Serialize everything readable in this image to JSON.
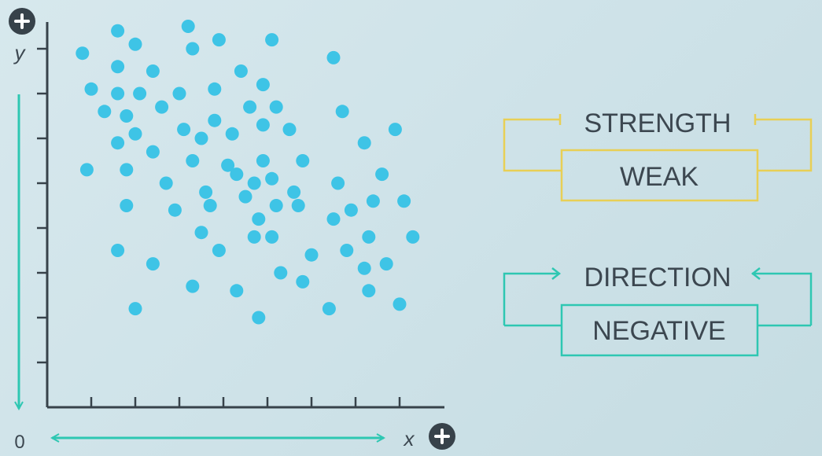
{
  "colors": {
    "background": "#d2e5ea",
    "axis": "#37424a",
    "point": "#3ec4e6",
    "arrow": "#2ec7b2",
    "strength_bracket": "#e8cf55",
    "direction_bracket": "#2ec7b2",
    "text": "#3c4750",
    "plus_circle": "#37424a"
  },
  "icons": {
    "axis_end": "plus-circle-icon",
    "axis_arrows": "double-arrow-icon"
  },
  "axis": {
    "y_label": "y",
    "x_label": "x",
    "origin_label": "0"
  },
  "labels": {
    "strength_title": "STRENGTH",
    "strength_value": "WEAK",
    "direction_title": "DIRECTION",
    "direction_value": "NEGATIVE"
  },
  "chart_data": {
    "type": "scatter",
    "title": "",
    "xlabel": "x",
    "ylabel": "y",
    "grid": false,
    "points": [
      [
        0.8,
        7.9
      ],
      [
        1.6,
        8.4
      ],
      [
        2.0,
        8.1
      ],
      [
        3.2,
        8.5
      ],
      [
        3.3,
        8.0
      ],
      [
        3.9,
        8.2
      ],
      [
        5.1,
        8.2
      ],
      [
        6.5,
        7.8
      ],
      [
        1.0,
        7.1
      ],
      [
        1.6,
        7.6
      ],
      [
        2.4,
        7.5
      ],
      [
        3.0,
        7.0
      ],
      [
        3.8,
        7.1
      ],
      [
        4.4,
        7.5
      ],
      [
        4.9,
        7.2
      ],
      [
        1.6,
        7.0
      ],
      [
        2.1,
        7.0
      ],
      [
        1.3,
        6.6
      ],
      [
        1.8,
        6.5
      ],
      [
        2.6,
        6.7
      ],
      [
        4.6,
        6.7
      ],
      [
        5.2,
        6.7
      ],
      [
        6.7,
        6.6
      ],
      [
        3.8,
        6.4
      ],
      [
        4.9,
        6.3
      ],
      [
        5.5,
        6.2
      ],
      [
        3.1,
        6.2
      ],
      [
        4.2,
        6.1
      ],
      [
        2.0,
        6.1
      ],
      [
        3.5,
        6.0
      ],
      [
        1.6,
        5.9
      ],
      [
        7.2,
        5.9
      ],
      [
        7.9,
        6.2
      ],
      [
        2.4,
        5.7
      ],
      [
        3.3,
        5.5
      ],
      [
        4.1,
        5.4
      ],
      [
        4.9,
        5.5
      ],
      [
        5.8,
        5.5
      ],
      [
        0.9,
        5.3
      ],
      [
        1.8,
        5.3
      ],
      [
        4.3,
        5.2
      ],
      [
        5.1,
        5.1
      ],
      [
        7.6,
        5.2
      ],
      [
        2.7,
        5.0
      ],
      [
        4.7,
        5.0
      ],
      [
        6.6,
        5.0
      ],
      [
        3.6,
        4.8
      ],
      [
        4.5,
        4.7
      ],
      [
        5.6,
        4.8
      ],
      [
        7.4,
        4.6
      ],
      [
        8.1,
        4.6
      ],
      [
        1.8,
        4.5
      ],
      [
        2.9,
        4.4
      ],
      [
        3.7,
        4.5
      ],
      [
        5.2,
        4.5
      ],
      [
        5.7,
        4.5
      ],
      [
        6.9,
        4.4
      ],
      [
        4.8,
        4.2
      ],
      [
        6.5,
        4.2
      ],
      [
        3.5,
        3.9
      ],
      [
        4.7,
        3.8
      ],
      [
        5.1,
        3.8
      ],
      [
        7.3,
        3.8
      ],
      [
        8.3,
        3.8
      ],
      [
        1.6,
        3.5
      ],
      [
        3.9,
        3.5
      ],
      [
        6.0,
        3.4
      ],
      [
        6.8,
        3.5
      ],
      [
        2.4,
        3.2
      ],
      [
        5.3,
        3.0
      ],
      [
        7.2,
        3.1
      ],
      [
        7.7,
        3.2
      ],
      [
        3.3,
        2.7
      ],
      [
        4.3,
        2.6
      ],
      [
        5.8,
        2.8
      ],
      [
        7.3,
        2.6
      ],
      [
        2.0,
        2.2
      ],
      [
        4.8,
        2.0
      ],
      [
        6.4,
        2.2
      ],
      [
        8.0,
        2.3
      ]
    ]
  }
}
